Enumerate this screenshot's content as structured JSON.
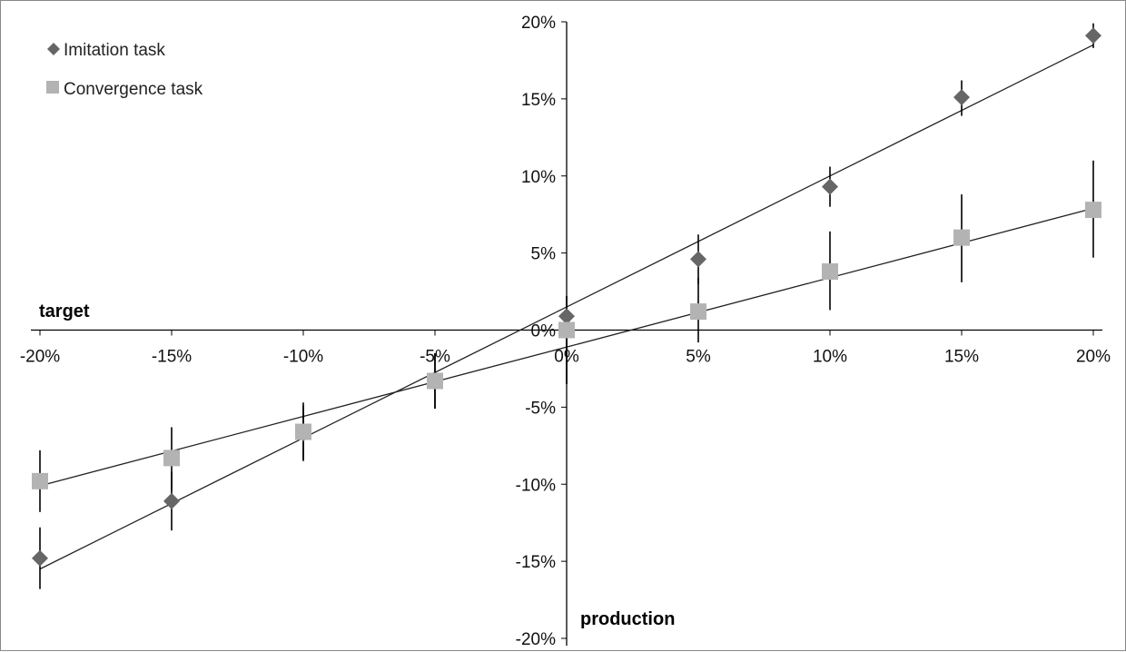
{
  "chart_data": {
    "type": "scatter",
    "xlabel": "target",
    "ylabel": "production",
    "xlim": [
      -0.2,
      0.2
    ],
    "ylim": [
      -0.2,
      0.2
    ],
    "x_ticks": [
      -0.2,
      -0.15,
      -0.1,
      -0.05,
      0,
      0.05,
      0.1,
      0.15,
      0.2
    ],
    "y_ticks": [
      -0.2,
      -0.15,
      -0.1,
      -0.05,
      0,
      0.05,
      0.1,
      0.15,
      0.2
    ],
    "x_tick_labels": [
      "-20%",
      "-15%",
      "-10%",
      "-5%",
      "0%",
      "5%",
      "10%",
      "15%",
      "20%"
    ],
    "y_tick_labels": [
      "-20%",
      "-15%",
      "-10%",
      "-5%",
      "0%",
      "5%",
      "10%",
      "15%",
      "20%"
    ],
    "grid": false,
    "legend_position": "top-left",
    "series": [
      {
        "name": "Imitation task",
        "marker": "diamond",
        "color": "#666666",
        "x": [
          -0.2,
          -0.15,
          -0.1,
          -0.05,
          0,
          0.05,
          0.1,
          0.15,
          0.2
        ],
        "y": [
          -0.148,
          -0.111,
          -0.067,
          -0.033,
          0.009,
          0.046,
          0.093,
          0.151,
          0.191
        ],
        "err_low": [
          -0.168,
          -0.13,
          -0.085,
          -0.051,
          -0.035,
          0.03,
          0.08,
          0.139,
          0.183
        ],
        "err_high": [
          -0.128,
          -0.092,
          -0.049,
          -0.015,
          0.022,
          0.062,
          0.106,
          0.162,
          0.199
        ],
        "trendline": {
          "slope": 0.85,
          "intercept": 0.015
        }
      },
      {
        "name": "Convergence task",
        "marker": "square",
        "color": "#b3b3b3",
        "x": [
          -0.2,
          -0.15,
          -0.1,
          -0.05,
          0,
          0.05,
          0.1,
          0.15,
          0.2
        ],
        "y": [
          -0.098,
          -0.083,
          -0.066,
          -0.033,
          0.0,
          0.012,
          0.038,
          0.06,
          0.078
        ],
        "err_low": [
          -0.118,
          -0.104,
          -0.084,
          -0.051,
          -0.035,
          -0.008,
          0.013,
          0.031,
          0.047
        ],
        "err_high": [
          -0.078,
          -0.063,
          -0.047,
          -0.015,
          0.022,
          0.034,
          0.064,
          0.088,
          0.11
        ],
        "trendline": {
          "slope": 0.45,
          "intercept": -0.011
        }
      }
    ]
  }
}
